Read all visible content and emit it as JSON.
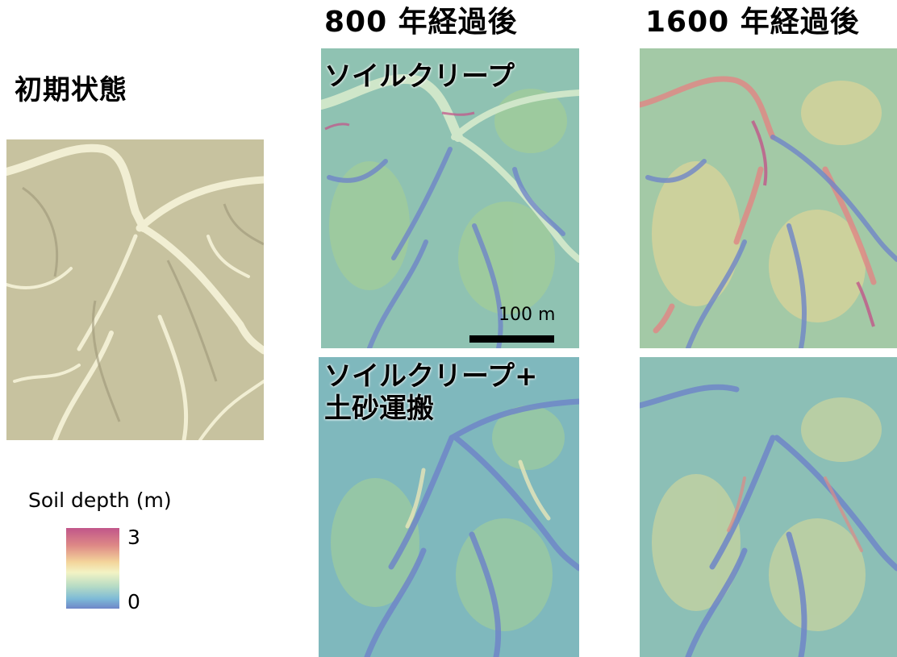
{
  "columns": {
    "initial": "初期状態",
    "after800": "800 年経過後",
    "after1600": "1600 年経過後"
  },
  "rows": {
    "creep": "ソイルクリープ",
    "creep_transport_line1": "ソイルクリープ+",
    "creep_transport_line2": "土砂運搬"
  },
  "legend": {
    "title": "Soil depth (m)",
    "max_label": "3",
    "min_label": "0",
    "colors": [
      "#c1568a",
      "#de8a86",
      "#f3d49a",
      "#f3f3c4",
      "#b7dcc4",
      "#7dbad7",
      "#6f86c8"
    ]
  },
  "scale_bar": {
    "label": "100 m"
  }
}
